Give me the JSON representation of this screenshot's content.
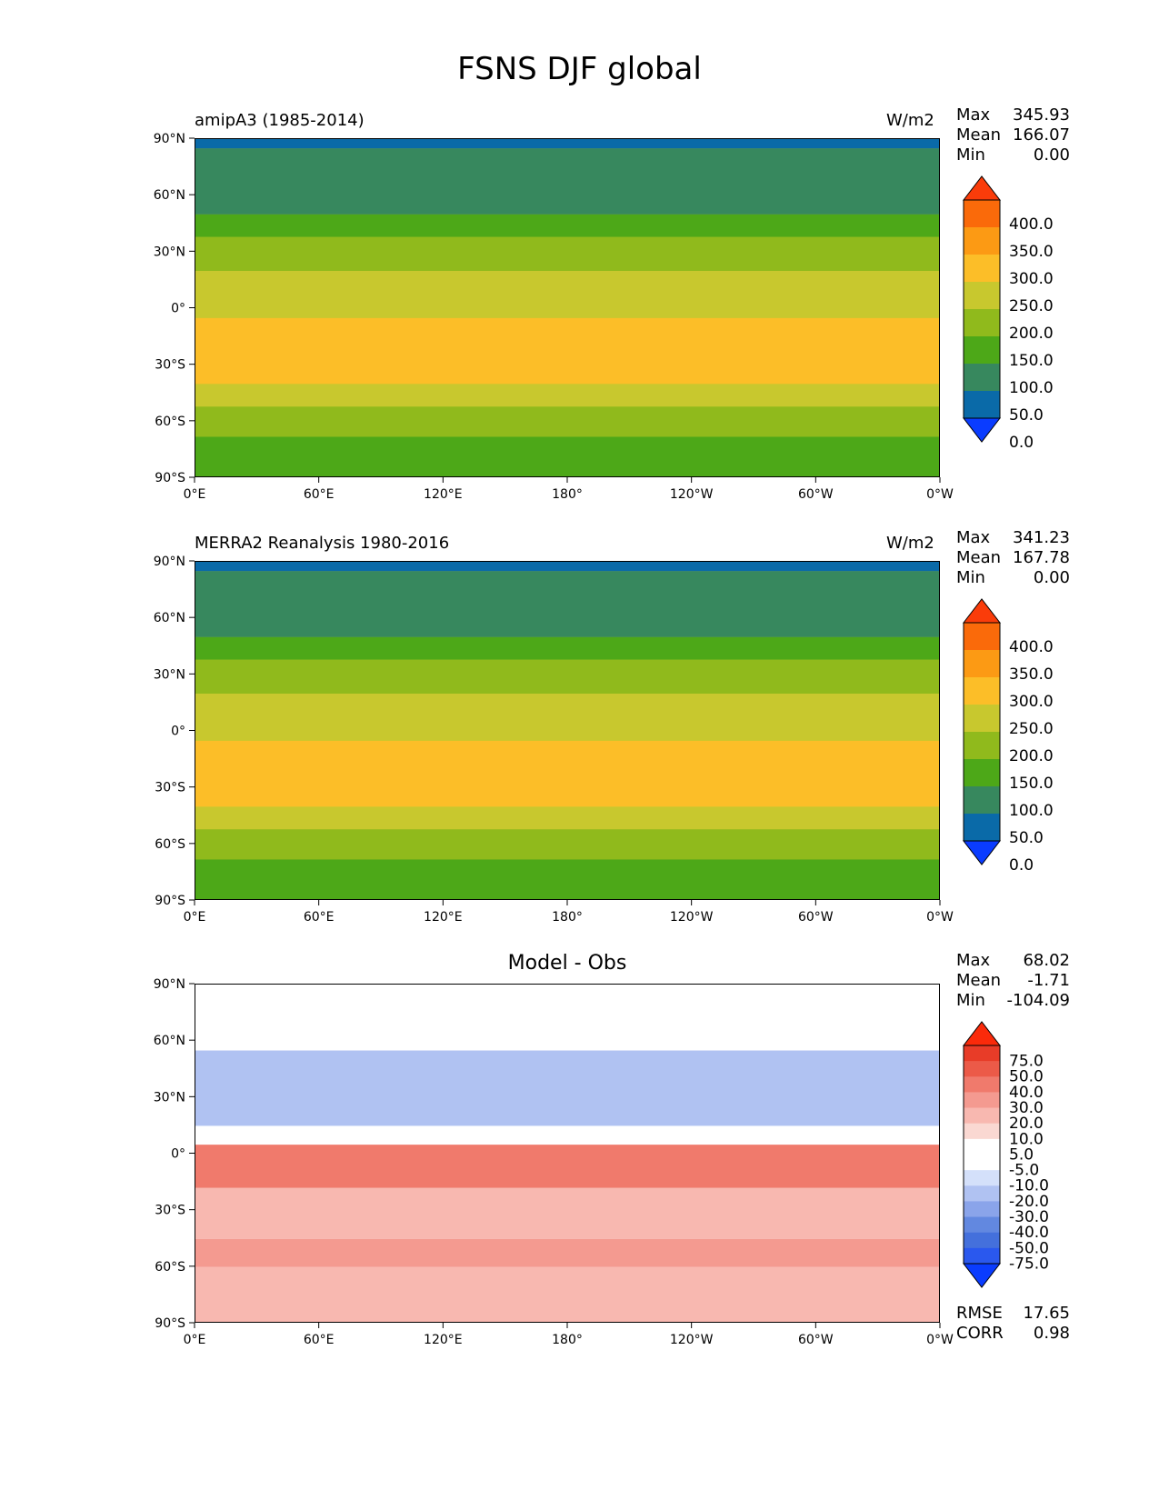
{
  "figure_title": "FSNS DJF global",
  "x_ticks": [
    "0°E",
    "60°E",
    "120°E",
    "180°",
    "120°W",
    "60°W",
    "0°W"
  ],
  "y_ticks": [
    "90°N",
    "60°N",
    "30°N",
    "0°",
    "30°S",
    "60°S",
    "90°S"
  ],
  "colors": {
    "abs_levels": [
      "#0a3cff",
      "#0a6aa8",
      "#37885e",
      "#4da818",
      "#90ba1c",
      "#c8c82e",
      "#fcbe28",
      "#fc9a14",
      "#fa6a0a",
      "#fa3c0a"
    ],
    "diff_levels": [
      "#0a3cff",
      "#2a58ee",
      "#4470dc",
      "#6288e0",
      "#8aa4ea",
      "#b0c2f2",
      "#d4e0fa",
      "#ffffff",
      "#ffffff",
      "#fad8d2",
      "#f8b8b0",
      "#f49a90",
      "#f07a6c",
      "#ec5a48",
      "#e83c28",
      "#fa2a0a"
    ]
  },
  "panels": [
    {
      "subtitle": "amipA3 (1985-2014)",
      "units": "W/m2",
      "stats": {
        "Max": "345.93",
        "Mean": "166.07",
        "Min": "0.00"
      },
      "colorbar_labels": [
        "400.0",
        "350.0",
        "300.0",
        "250.0",
        "200.0",
        "150.0",
        "100.0",
        "50.0",
        "0.0"
      ]
    },
    {
      "subtitle": "MERRA2 Reanalysis 1980-2016",
      "units": "W/m2",
      "stats": {
        "Max": "341.23",
        "Mean": "167.78",
        "Min": "0.00"
      },
      "colorbar_labels": [
        "400.0",
        "350.0",
        "300.0",
        "250.0",
        "200.0",
        "150.0",
        "100.0",
        "50.0",
        "0.0"
      ]
    },
    {
      "title": "Model - Obs",
      "stats": {
        "Max": "68.02",
        "Mean": "-1.71",
        "Min": "-104.09"
      },
      "colorbar_labels": [
        "75.0",
        "50.0",
        "40.0",
        "30.0",
        "20.0",
        "10.0",
        "5.0",
        "-5.0",
        "-10.0",
        "-20.0",
        "-30.0",
        "-40.0",
        "-50.0",
        "-75.0"
      ],
      "extra_stats": {
        "RMSE": "17.65",
        "CORR": "0.98"
      }
    }
  ],
  "chart_data": [
    {
      "type": "heatmap",
      "title": "amipA3 (1985-2014)",
      "units": "W/m2",
      "xlabel": "",
      "ylabel": "",
      "xlim": [
        0,
        360
      ],
      "ylim": [
        -90,
        90
      ],
      "stats": {
        "max": 345.93,
        "mean": 166.07,
        "min": 0.0
      },
      "contour_levels": [
        0,
        50,
        100,
        150,
        200,
        250,
        300,
        350,
        400
      ],
      "zonal_bands": [
        {
          "lat_range": [
            85,
            90
          ],
          "value_range": [
            0,
            50
          ]
        },
        {
          "lat_range": [
            50,
            85
          ],
          "value_range": [
            50,
            100
          ]
        },
        {
          "lat_range": [
            38,
            50
          ],
          "value_range": [
            100,
            150
          ]
        },
        {
          "lat_range": [
            20,
            38
          ],
          "value_range": [
            150,
            200
          ]
        },
        {
          "lat_range": [
            -5,
            20
          ],
          "value_range": [
            200,
            250
          ]
        },
        {
          "lat_range": [
            -40,
            -5
          ],
          "value_range": [
            250,
            300
          ]
        },
        {
          "lat_range": [
            -52,
            -40
          ],
          "value_range": [
            200,
            250
          ]
        },
        {
          "lat_range": [
            -68,
            -52
          ],
          "value_range": [
            150,
            200
          ]
        },
        {
          "lat_range": [
            -90,
            -68
          ],
          "value_range": [
            100,
            150
          ]
        }
      ]
    },
    {
      "type": "heatmap",
      "title": "MERRA2 Reanalysis 1980-2016",
      "units": "W/m2",
      "xlabel": "",
      "ylabel": "",
      "xlim": [
        0,
        360
      ],
      "ylim": [
        -90,
        90
      ],
      "stats": {
        "max": 341.23,
        "mean": 167.78,
        "min": 0.0
      },
      "contour_levels": [
        0,
        50,
        100,
        150,
        200,
        250,
        300,
        350,
        400
      ],
      "zonal_bands": [
        {
          "lat_range": [
            85,
            90
          ],
          "value_range": [
            0,
            50
          ]
        },
        {
          "lat_range": [
            50,
            85
          ],
          "value_range": [
            50,
            100
          ]
        },
        {
          "lat_range": [
            38,
            50
          ],
          "value_range": [
            100,
            150
          ]
        },
        {
          "lat_range": [
            20,
            38
          ],
          "value_range": [
            150,
            200
          ]
        },
        {
          "lat_range": [
            -5,
            20
          ],
          "value_range": [
            200,
            250
          ]
        },
        {
          "lat_range": [
            -40,
            -5
          ],
          "value_range": [
            250,
            300
          ]
        },
        {
          "lat_range": [
            -52,
            -40
          ],
          "value_range": [
            200,
            250
          ]
        },
        {
          "lat_range": [
            -68,
            -52
          ],
          "value_range": [
            150,
            200
          ]
        },
        {
          "lat_range": [
            -90,
            -68
          ],
          "value_range": [
            100,
            150
          ]
        }
      ]
    },
    {
      "type": "heatmap",
      "title": "Model - Obs",
      "xlabel": "",
      "ylabel": "",
      "xlim": [
        0,
        360
      ],
      "ylim": [
        -90,
        90
      ],
      "stats": {
        "max": 68.02,
        "mean": -1.71,
        "min": -104.09,
        "rmse": 17.65,
        "corr": 0.98
      },
      "contour_levels": [
        -75,
        -50,
        -40,
        -30,
        -20,
        -10,
        -5,
        5,
        10,
        20,
        30,
        40,
        50,
        75
      ],
      "zonal_bands": [
        {
          "lat_range": [
            65,
            90
          ],
          "value_range": [
            -5,
            5
          ]
        },
        {
          "lat_range": [
            15,
            55
          ],
          "value_range": [
            -30,
            -10
          ]
        },
        {
          "lat_range": [
            -18,
            5
          ],
          "value_range": [
            20,
            50
          ]
        },
        {
          "lat_range": [
            -45,
            -18
          ],
          "value_range": [
            5,
            20
          ]
        },
        {
          "lat_range": [
            -60,
            -45
          ],
          "value_range": [
            10,
            30
          ]
        },
        {
          "lat_range": [
            -90,
            -60
          ],
          "value_range": [
            5,
            20
          ]
        }
      ]
    }
  ]
}
